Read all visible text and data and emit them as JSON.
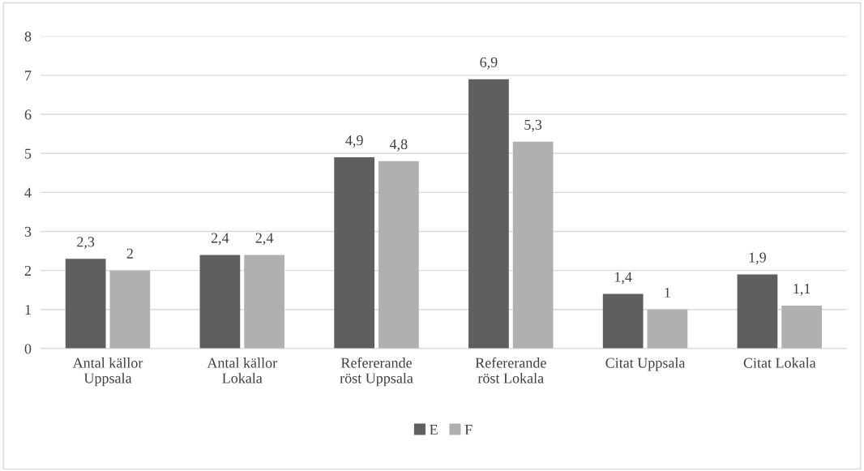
{
  "chart_data": {
    "type": "bar",
    "categories": [
      "Antal källor Uppsala",
      "Antal källor Lokala",
      "Refererande röst Uppsala",
      "Refererande röst Lokala",
      "Citat Uppsala",
      "Citat Lokala"
    ],
    "series": [
      {
        "name": "E",
        "color": "#5f5f5f",
        "values": [
          2.3,
          2.4,
          4.9,
          6.9,
          1.4,
          1.9
        ],
        "value_labels": [
          "2,3",
          "2,4",
          "4,9",
          "6,9",
          "1,4",
          "1,9"
        ]
      },
      {
        "name": "F",
        "color": "#b0b0b0",
        "values": [
          2,
          2.4,
          4.8,
          5.3,
          1,
          1.1
        ],
        "value_labels": [
          "2",
          "2,4",
          "4,8",
          "5,3",
          "1",
          "1,1"
        ]
      }
    ],
    "ylim": [
      0,
      8
    ],
    "yticks": [
      0,
      1,
      2,
      3,
      4,
      5,
      6,
      7,
      8
    ],
    "grid": "y",
    "legend": "bottom"
  }
}
